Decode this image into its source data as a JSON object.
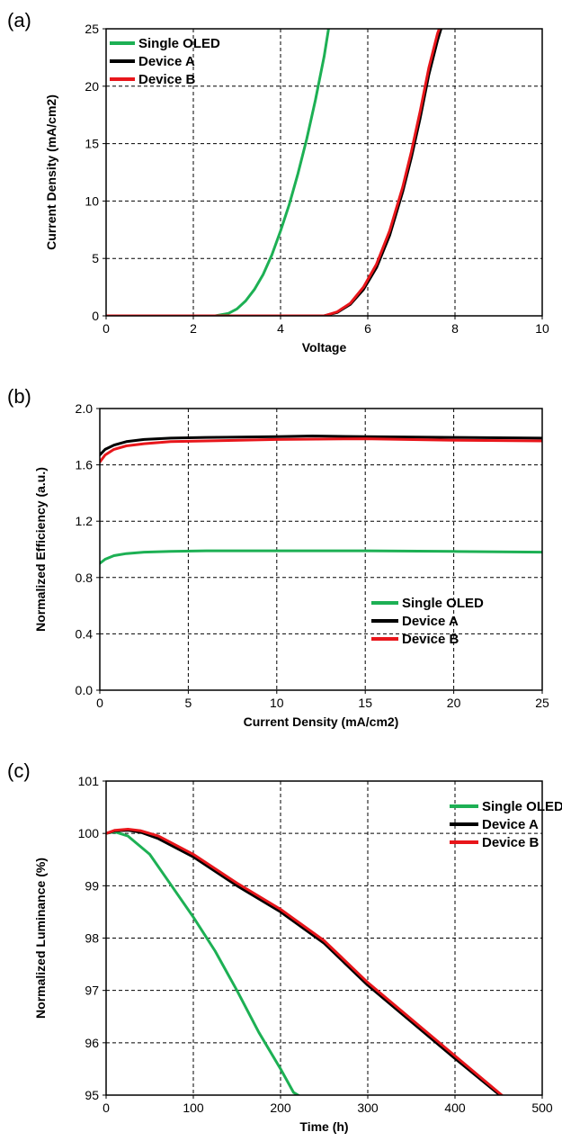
{
  "colors": {
    "single_oled": "#1db054",
    "device_a": "#000000",
    "device_b": "#e8161b"
  },
  "chart_data": [
    {
      "type": "line",
      "panel_label": "(a)",
      "xlabel": "Voltage",
      "ylabel": "Current Density (mA/cm2)",
      "xlim": [
        0,
        10
      ],
      "ylim": [
        0,
        25
      ],
      "x_ticks": [
        "0",
        "2",
        "4",
        "6",
        "8",
        "10"
      ],
      "y_ticks": [
        "0",
        "5",
        "10",
        "15",
        "20",
        "25"
      ],
      "grid": true,
      "legend_position": "top-left",
      "series": [
        {
          "name": "Single OLED",
          "color": "#1db054",
          "x": [
            0,
            1,
            2,
            2.5,
            2.8,
            3.0,
            3.2,
            3.4,
            3.6,
            3.8,
            4.0,
            4.2,
            4.4,
            4.6,
            4.8,
            5.0,
            5.1
          ],
          "y": [
            0,
            0,
            0,
            0,
            0.2,
            0.6,
            1.3,
            2.3,
            3.6,
            5.3,
            7.4,
            9.7,
            12.4,
            15.4,
            18.8,
            22.6,
            25
          ]
        },
        {
          "name": "Device A",
          "color": "#000000",
          "x": [
            0,
            2,
            4,
            5.0,
            5.3,
            5.6,
            5.9,
            6.2,
            6.5,
            6.8,
            7.0,
            7.2,
            7.4,
            7.6,
            7.68
          ],
          "y": [
            0,
            0,
            0,
            0,
            0.3,
            1.0,
            2.3,
            4.2,
            7.0,
            10.8,
            13.8,
            17.2,
            21.0,
            24.0,
            25
          ]
        },
        {
          "name": "Device B",
          "color": "#e8161b",
          "x": [
            0,
            2,
            4,
            5.0,
            5.3,
            5.6,
            5.9,
            6.2,
            6.5,
            6.8,
            7.0,
            7.2,
            7.4,
            7.6,
            7.64
          ],
          "y": [
            0,
            0,
            0,
            0,
            0.35,
            1.1,
            2.5,
            4.5,
            7.4,
            11.2,
            14.3,
            17.8,
            21.6,
            24.6,
            25
          ]
        }
      ]
    },
    {
      "type": "line",
      "panel_label": "(b)",
      "xlabel": "Current Density (mA/cm2)",
      "ylabel": "Normalized Efficiency (a.u.)",
      "xlim": [
        0,
        25
      ],
      "ylim": [
        0,
        2.0
      ],
      "x_ticks": [
        "0",
        "5",
        "10",
        "15",
        "20",
        "25"
      ],
      "y_ticks": [
        "0.0",
        "0.4",
        "0.8",
        "1.2",
        "1.6",
        "2.0"
      ],
      "grid": true,
      "legend_position": "bottom-right",
      "series": [
        {
          "name": "Single OLED",
          "color": "#1db054",
          "x": [
            0,
            0.3,
            0.8,
            1.5,
            2.5,
            4,
            6,
            10,
            15,
            20,
            25
          ],
          "y": [
            0.9,
            0.93,
            0.955,
            0.97,
            0.98,
            0.985,
            0.99,
            0.99,
            0.99,
            0.985,
            0.98
          ]
        },
        {
          "name": "Device A",
          "color": "#000000",
          "x": [
            0,
            0.3,
            0.8,
            1.5,
            2.5,
            4,
            6,
            10,
            12,
            15,
            20,
            25
          ],
          "y": [
            1.67,
            1.71,
            1.74,
            1.765,
            1.78,
            1.79,
            1.795,
            1.8,
            1.805,
            1.8,
            1.795,
            1.79
          ]
        },
        {
          "name": "Device B",
          "color": "#e8161b",
          "x": [
            0,
            0.3,
            0.8,
            1.5,
            2.5,
            4,
            6,
            10,
            15,
            20,
            25
          ],
          "y": [
            1.62,
            1.67,
            1.71,
            1.735,
            1.75,
            1.765,
            1.77,
            1.78,
            1.785,
            1.775,
            1.77
          ]
        }
      ]
    },
    {
      "type": "line",
      "panel_label": "(c)",
      "xlabel": "Time (h)",
      "ylabel": "Normalized Luminance (%)",
      "xlim": [
        0,
        500
      ],
      "ylim": [
        95,
        101
      ],
      "x_ticks": [
        "0",
        "100",
        "200",
        "300",
        "400",
        "500"
      ],
      "y_ticks": [
        "95",
        "96",
        "97",
        "98",
        "99",
        "100",
        "101"
      ],
      "grid": true,
      "legend_position": "top-right",
      "series": [
        {
          "name": "Single OLED",
          "color": "#1db054",
          "x": [
            0,
            10,
            25,
            50,
            75,
            100,
            125,
            150,
            175,
            200,
            215,
            225
          ],
          "y": [
            100,
            100.03,
            99.95,
            99.6,
            99.0,
            98.4,
            97.75,
            97.0,
            96.2,
            95.5,
            95.05,
            94.95
          ]
        },
        {
          "name": "Device A",
          "color": "#000000",
          "x": [
            0,
            10,
            25,
            40,
            60,
            100,
            150,
            200,
            250,
            300,
            350,
            400,
            455
          ],
          "y": [
            100,
            100.05,
            100.06,
            100.02,
            99.9,
            99.55,
            99.0,
            98.5,
            97.9,
            97.1,
            96.4,
            95.7,
            94.95
          ]
        },
        {
          "name": "Device B",
          "color": "#e8161b",
          "x": [
            0,
            10,
            25,
            40,
            60,
            100,
            150,
            200,
            250,
            300,
            350,
            400,
            455
          ],
          "y": [
            100,
            100.06,
            100.08,
            100.05,
            99.95,
            99.6,
            99.05,
            98.55,
            97.95,
            97.15,
            96.45,
            95.75,
            94.98
          ]
        }
      ]
    }
  ]
}
